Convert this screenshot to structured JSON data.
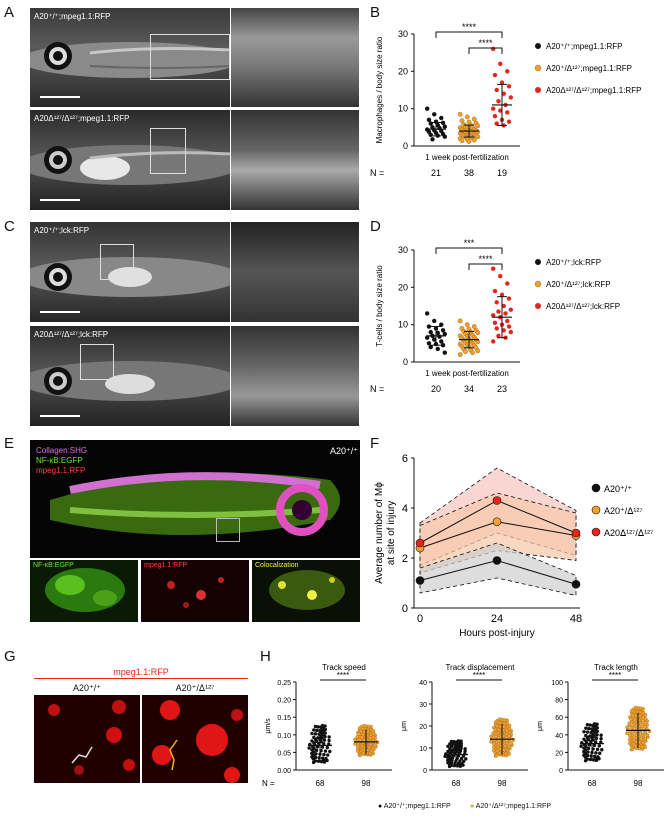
{
  "panels": {
    "A": "A",
    "B": "B",
    "C": "C",
    "D": "D",
    "E": "E",
    "F": "F",
    "G": "G",
    "H": "H"
  },
  "panelA": {
    "top_label": "A20⁺/⁺;mpeg1.1:RFP",
    "bottom_label": "A20ᐃ¹²⁷/ᐃ¹²⁷;mpeg1.1:RFP"
  },
  "panelC": {
    "top_label": "A20⁺/⁺;lck:RFP",
    "bottom_label": "A20ᐃ¹²⁷/ᐃ¹²⁷;lck:RFP"
  },
  "panelE": {
    "genotype": "A20⁺/⁺",
    "legend": [
      "Collagen:SHG",
      "NF-κB:EGFP",
      "mpeg1.1:RFP"
    ],
    "sub_labels": [
      "NF-κB:EGFP",
      "mpeg1.1:RFP",
      "Colocalization"
    ]
  },
  "panelG": {
    "title": "mpeg1.1:RFP",
    "left": "A20⁺/⁺",
    "right": "A20⁺/ᐃ¹²⁷"
  },
  "chart_data": [
    {
      "id": "B",
      "type": "scatter",
      "ylabel": "Macrophages / body size ratio",
      "xlabel": "1 week post-fertilization",
      "ylim": [
        0,
        30
      ],
      "yticks": [
        0,
        10,
        20,
        30
      ],
      "categories": [
        "A20⁺/⁺;mpeg1.1:RFP",
        "A20⁺/ᐃ¹²⁷;mpeg1.1:RFP",
        "A20ᐃ¹²⁷/ᐃ¹²⁷;mpeg1.1:RFP"
      ],
      "colors": [
        "#111111",
        "#f0a030",
        "#e8251c"
      ],
      "n": [
        "21",
        "38",
        "19"
      ],
      "mean": [
        4.5,
        4.0,
        11.0
      ],
      "sd": [
        1.8,
        1.6,
        5.5
      ],
      "values": [
        [
          10,
          8.5,
          7.5,
          7,
          6.5,
          6.2,
          6,
          5.6,
          5.2,
          5,
          4.8,
          4.4,
          4.2,
          4,
          3.8,
          3.5,
          3.2,
          3,
          2.8,
          2.5,
          1.8
        ],
        [
          8.5,
          7.8,
          7.2,
          6.8,
          6.4,
          6.1,
          5.8,
          5.6,
          5.4,
          5.2,
          5,
          4.9,
          4.7,
          4.5,
          4.4,
          4.2,
          4.1,
          4,
          3.9,
          3.8,
          3.6,
          3.5,
          3.4,
          3.3,
          3.2,
          3.1,
          3,
          2.9,
          2.8,
          2.6,
          2.5,
          2.4,
          2.2,
          2,
          1.8,
          1.6,
          1.4,
          1.2
        ],
        [
          26,
          22,
          20,
          19,
          17,
          16,
          15,
          14,
          13,
          12,
          11,
          10,
          9.5,
          9,
          8,
          7,
          6.5,
          6,
          5.5
        ]
      ],
      "significance": [
        {
          "from": 0,
          "to": 2,
          "label": "****"
        },
        {
          "from": 1,
          "to": 2,
          "label": "****"
        }
      ],
      "n_prefix": "N ="
    },
    {
      "id": "D",
      "type": "scatter",
      "ylabel": "T-cells / body size ratio",
      "xlabel": "1 week post-fertilization",
      "ylim": [
        0,
        30
      ],
      "yticks": [
        0,
        10,
        20,
        30
      ],
      "categories": [
        "A20⁺/⁺;lck:RFP",
        "A20⁺/ᐃ¹²⁷;lck:RFP",
        "A20ᐃ¹²⁷/ᐃ¹²⁷;lck:RFP"
      ],
      "colors": [
        "#111111",
        "#f0a030",
        "#e8251c"
      ],
      "n": [
        "20",
        "34",
        "23"
      ],
      "mean": [
        7.0,
        6.0,
        12.0
      ],
      "sd": [
        2.5,
        2.2,
        5.5
      ],
      "values": [
        [
          13,
          11,
          10,
          9.5,
          9,
          8.5,
          8,
          7.8,
          7.5,
          7,
          6.8,
          6.5,
          6,
          5.5,
          5,
          4.8,
          4.5,
          4,
          3.5,
          2.5
        ],
        [
          11,
          10,
          9.5,
          9,
          8.8,
          8.5,
          8.2,
          8,
          7.8,
          7.5,
          7.2,
          7,
          6.8,
          6.6,
          6.4,
          6.2,
          6,
          5.8,
          5.6,
          5.4,
          5.2,
          5,
          4.8,
          4.6,
          4.4,
          4.2,
          4,
          3.8,
          3.5,
          3.2,
          3,
          2.8,
          2.5,
          2
        ],
        [
          25,
          23,
          21,
          19,
          18,
          17,
          16,
          15,
          14,
          13.5,
          13,
          12.5,
          12,
          11,
          10.5,
          10,
          9.5,
          9,
          8.5,
          8,
          7,
          6.5,
          5.5
        ]
      ],
      "significance": [
        {
          "from": 0,
          "to": 2,
          "label": "***"
        },
        {
          "from": 1,
          "to": 2,
          "label": "****"
        }
      ],
      "n_prefix": "N ="
    },
    {
      "id": "F",
      "type": "line",
      "ylabel": "Average number of Mϕ\nat site of injury",
      "xlabel": "Hours post-injury",
      "x": [
        0,
        24,
        48
      ],
      "xticks": [
        "0",
        "24",
        "48"
      ],
      "ylim": [
        0,
        6
      ],
      "yticks": [
        0,
        2,
        4,
        6
      ],
      "series": [
        {
          "name": "A20⁺/⁺",
          "color": "#111111",
          "values": [
            1.1,
            1.9,
            0.95
          ],
          "upper": [
            1.6,
            2.6,
            1.3
          ],
          "lower": [
            0.6,
            1.2,
            0.5
          ]
        },
        {
          "name": "A20⁺/ᐃ¹²⁷",
          "color": "#f0a030",
          "values": [
            2.4,
            3.45,
            2.9
          ],
          "upper": [
            3.3,
            4.6,
            3.8
          ],
          "lower": [
            1.4,
            2.3,
            1.9
          ]
        },
        {
          "name": "A20ᐃ¹²⁷/ᐃ¹²⁷",
          "color": "#e8251c",
          "values": [
            2.6,
            4.3,
            3.0
          ],
          "upper": [
            3.4,
            5.6,
            3.9
          ],
          "lower": [
            1.7,
            3.0,
            2.1
          ]
        }
      ]
    },
    {
      "id": "H1",
      "type": "scatter",
      "title": "Track speed",
      "ylabel": "μm/s",
      "ylim": [
        0,
        0.25
      ],
      "yticks": [
        "0.00",
        "0.05",
        "0.10",
        "0.15",
        "0.20",
        "0.25"
      ],
      "n": [
        "68",
        "98"
      ],
      "colors": [
        "#111111",
        "#f0a030"
      ],
      "mean": [
        0.07,
        0.08
      ],
      "sd": [
        0.045,
        0.035
      ],
      "sig": "****"
    },
    {
      "id": "H2",
      "type": "scatter",
      "title": "Track displacement",
      "ylabel": "μm",
      "ylim": [
        0,
        40
      ],
      "yticks": [
        "0",
        "10",
        "20",
        "30",
        "40"
      ],
      "n": [
        "68",
        "98"
      ],
      "colors": [
        "#111111",
        "#f0a030"
      ],
      "mean": [
        7,
        14
      ],
      "sd": [
        5,
        7
      ],
      "sig": "****"
    },
    {
      "id": "H3",
      "type": "scatter",
      "title": "Track length",
      "ylabel": "μm",
      "ylim": [
        0,
        100
      ],
      "yticks": [
        "0",
        "20",
        "40",
        "60",
        "80",
        "100"
      ],
      "n": [
        "68",
        "98"
      ],
      "colors": [
        "#111111",
        "#f0a030"
      ],
      "mean": [
        30,
        45
      ],
      "sd": [
        18,
        20
      ],
      "sig": "****"
    }
  ],
  "panelH_legend": [
    "A20⁺/⁺;mpeg1.1:RFP",
    "A20⁺/ᐃ¹²⁷;mpeg1.1:RFP"
  ],
  "n_prefix": "N ="
}
